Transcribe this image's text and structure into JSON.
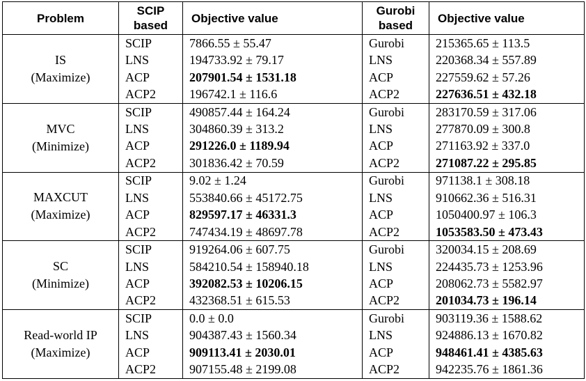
{
  "header": {
    "problem": "Problem",
    "scip_based_1": "SCIP",
    "scip_based_2": "based",
    "obj1": "Objective value",
    "gurobi_based_1": "Gurobi",
    "gurobi_based_2": "based",
    "obj2": "Objective value"
  },
  "groups": [
    {
      "name": "IS",
      "goal": "(Maximize)",
      "rows": [
        {
          "m1": "SCIP",
          "v1": "7866.55 ± 55.47",
          "b1": false,
          "m2": "Gurobi",
          "v2": "215365.65 ± 113.5",
          "b2": false
        },
        {
          "m1": "LNS",
          "v1": "194733.92 ± 79.17",
          "b1": false,
          "m2": "LNS",
          "v2": "220368.34 ± 557.89",
          "b2": false
        },
        {
          "m1": "ACP",
          "v1": "207901.54 ± 1531.18",
          "b1": true,
          "m2": "ACP",
          "v2": "227559.62 ± 57.26",
          "b2": false
        },
        {
          "m1": "ACP2",
          "v1": "196742.1 ± 116.6",
          "b1": false,
          "m2": "ACP2",
          "v2": "227636.51 ± 432.18",
          "b2": true
        }
      ]
    },
    {
      "name": "MVC",
      "goal": "(Minimize)",
      "rows": [
        {
          "m1": "SCIP",
          "v1": "490857.44 ± 164.24",
          "b1": false,
          "m2": "Gurobi",
          "v2": "283170.59 ± 317.06",
          "b2": false
        },
        {
          "m1": "LNS",
          "v1": "304860.39 ± 313.2",
          "b1": false,
          "m2": "LNS",
          "v2": "277870.09 ± 300.8",
          "b2": false
        },
        {
          "m1": "ACP",
          "v1": "291226.0 ± 1189.94",
          "b1": true,
          "m2": "ACP",
          "v2": "271163.92 ± 337.0",
          "b2": false
        },
        {
          "m1": "ACP2",
          "v1": "301836.42 ± 70.59",
          "b1": false,
          "m2": "ACP2",
          "v2": "271087.22 ± 295.85",
          "b2": true
        }
      ]
    },
    {
      "name": "MAXCUT",
      "goal": "(Maximize)",
      "rows": [
        {
          "m1": "SCIP",
          "v1": "9.02 ± 1.24",
          "b1": false,
          "m2": "Gurobi",
          "v2": "971138.1 ± 308.18",
          "b2": false
        },
        {
          "m1": "LNS",
          "v1": "553840.66 ± 45172.75",
          "b1": false,
          "m2": "LNS",
          "v2": "910662.36 ± 516.31",
          "b2": false
        },
        {
          "m1": "ACP",
          "v1": "829597.17 ± 46331.3",
          "b1": true,
          "m2": "ACP",
          "v2": "1050400.97 ± 106.3",
          "b2": false
        },
        {
          "m1": "ACP2",
          "v1": "747434.19 ± 48697.78",
          "b1": false,
          "m2": "ACP2",
          "v2": "1053583.50 ± 473.43",
          "b2": true
        }
      ]
    },
    {
      "name": "SC",
      "goal": "(Minimize)",
      "rows": [
        {
          "m1": "SCIP",
          "v1": "919264.06 ± 607.75",
          "b1": false,
          "m2": "Gurobi",
          "v2": "320034.15 ± 208.69",
          "b2": false
        },
        {
          "m1": "LNS",
          "v1": "584210.54 ± 158940.18",
          "b1": false,
          "m2": "LNS",
          "v2": "224435.73 ± 1253.96",
          "b2": false
        },
        {
          "m1": "ACP",
          "v1": "392082.53 ± 10206.15",
          "b1": true,
          "m2": "ACP",
          "v2": "208062.73 ± 5582.97",
          "b2": false
        },
        {
          "m1": "ACP2",
          "v1": "432368.51 ± 615.53",
          "b1": false,
          "m2": "ACP2",
          "v2": "201034.73 ± 196.14",
          "b2": true
        }
      ]
    },
    {
      "name": "Read-world IP",
      "goal": "(Maximize)",
      "rows": [
        {
          "m1": "SCIP",
          "v1": "0.0 ± 0.0",
          "b1": false,
          "m2": "Gurobi",
          "v2": "903119.36 ± 1588.62",
          "b2": false
        },
        {
          "m1": "LNS",
          "v1": "904387.43 ± 1560.34",
          "b1": false,
          "m2": "LNS",
          "v2": "924886.13 ± 1670.82",
          "b2": false
        },
        {
          "m1": "ACP",
          "v1": "909113.41 ± 2030.01",
          "b1": true,
          "m2": "ACP",
          "v2": "948461.41 ± 4385.63",
          "b2": true
        },
        {
          "m1": "ACP2",
          "v1": "907155.48 ± 2199.08",
          "b1": false,
          "m2": "ACP2",
          "v2": "942235.76 ± 1861.36",
          "b2": false
        }
      ]
    }
  ]
}
